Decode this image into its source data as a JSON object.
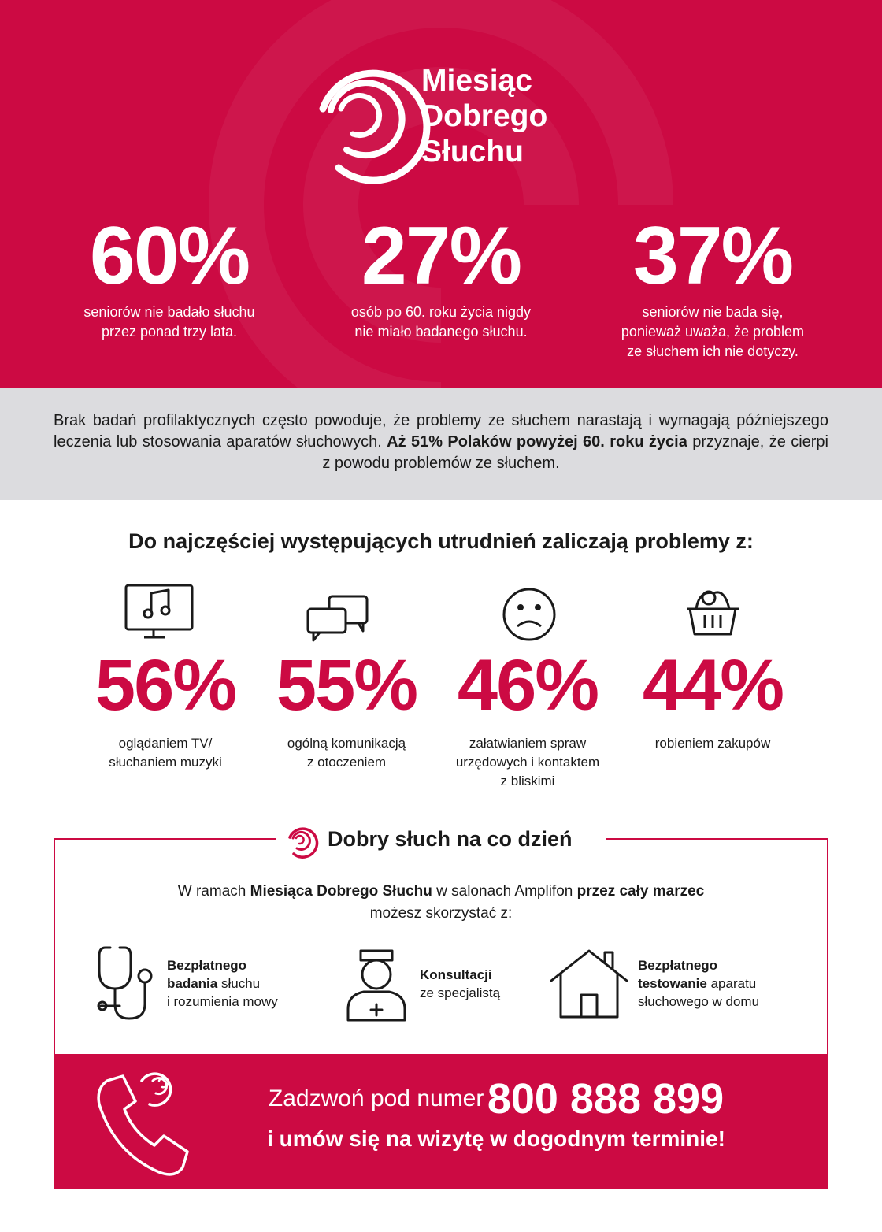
{
  "header": {
    "title_lines": [
      "Miesiąc",
      "Dobrego",
      "Słuchu"
    ]
  },
  "stats": [
    {
      "value": "60%",
      "lines": [
        "seniorów nie badało słuchu",
        "przez ponad trzy lata."
      ]
    },
    {
      "value": "27%",
      "lines": [
        "osób po 60. roku życia nigdy",
        "nie miało badanego słuchu."
      ]
    },
    {
      "value": "37%",
      "lines": [
        "seniorów nie bada się,",
        "ponieważ uważa, że problem",
        "ze słuchem ich nie dotyczy."
      ]
    }
  ],
  "intro": {
    "segments": [
      "Brak badań profilaktycznych często powoduje, że problemy ze słuchem narastają i wymagają późniejszego leczenia lub stosowania aparatów słuchowych.",
      "Aż 51% Polaków powyżej 60. roku życia",
      "przyznaje, że cierpi z powodu problemów ze słuchem."
    ]
  },
  "problems": {
    "heading": "Do najczęściej występujących utrudnień zaliczają problemy z:",
    "items": [
      {
        "value": "56%",
        "lines": [
          "oglądaniem TV/",
          "słuchaniem muzyki"
        ]
      },
      {
        "value": "55%",
        "lines": [
          "ogólną komunikacją",
          "z otoczeniem"
        ]
      },
      {
        "value": "46%",
        "lines": [
          "załatwianiem spraw",
          "urzędowych i kontaktem",
          "z bliskimi"
        ]
      },
      {
        "value": "44%",
        "lines": [
          "robieniem zakupów"
        ]
      }
    ]
  },
  "offer": {
    "title": "Dobry słuch na co dzień",
    "intro": [
      "W ramach",
      "Miesiąca Dobrego Słuchu",
      "w salonach Amplifon",
      "przez cały marzec",
      "możesz skorzystać z:"
    ],
    "items": [
      [
        "Bezpłatnego",
        "badania",
        "słuchu",
        "i rozumienia mowy"
      ],
      [
        "Konsultacji",
        "ze specjalistą"
      ],
      [
        "Bezpłatnego",
        "testowanie",
        "aparatu",
        "słuchowego w domu"
      ]
    ]
  },
  "cta": {
    "lead": "Zadzwoń pod numer",
    "number": "800 888 899",
    "line2": "i umów się na wizytę w dogodnym terminie!"
  }
}
